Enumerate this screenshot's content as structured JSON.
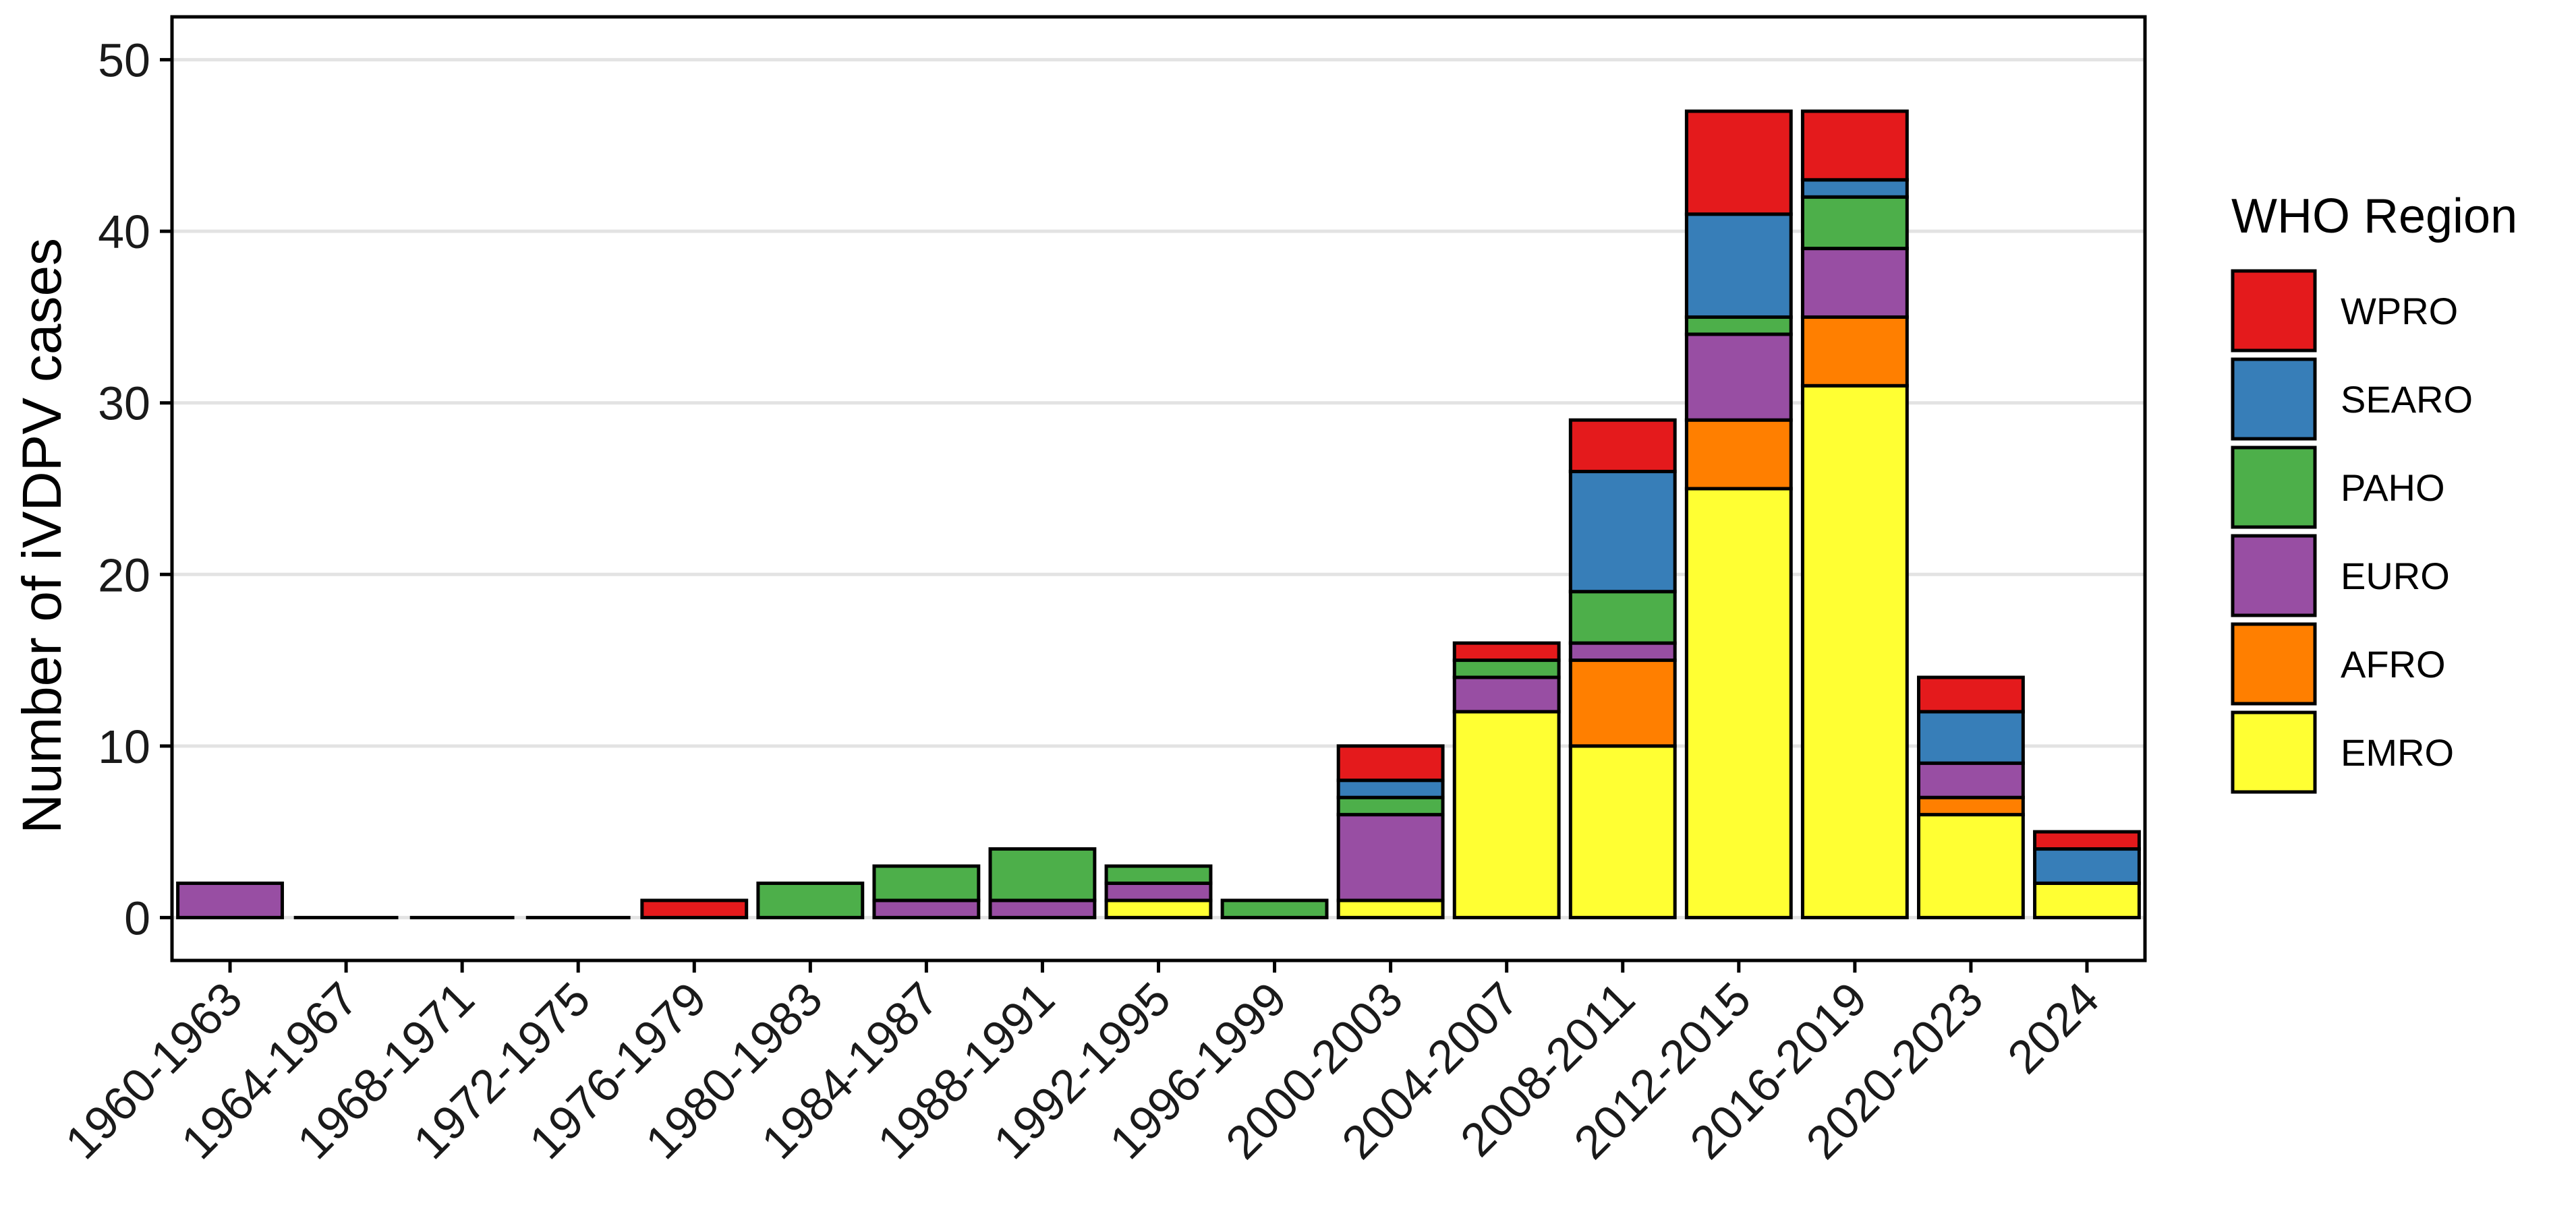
{
  "chart_data": {
    "type": "bar",
    "stacked": true,
    "title": "",
    "xlabel": "",
    "ylabel": "Number of iVDPV cases",
    "ylim": [
      -2.5,
      52.5
    ],
    "yticks": [
      0,
      10,
      20,
      30,
      40,
      50
    ],
    "grid": "horizontal",
    "legend_title": "WHO Region",
    "legend_position": "right",
    "categories": [
      "1960-1963",
      "1964-1967",
      "1968-1971",
      "1972-1975",
      "1976-1979",
      "1980-1983",
      "1984-1987",
      "1988-1991",
      "1992-1995",
      "1996-1999",
      "2000-2003",
      "2004-2007",
      "2008-2011",
      "2012-2015",
      "2016-2019",
      "2020-2023",
      "2024"
    ],
    "series": [
      {
        "name": "EMRO",
        "color": "#ffff33",
        "values": [
          0,
          0,
          0,
          0,
          0,
          0,
          0,
          0,
          1,
          0,
          1,
          12,
          10,
          25,
          31,
          6,
          2
        ]
      },
      {
        "name": "AFRO",
        "color": "#ff7f00",
        "values": [
          0,
          0,
          0,
          0,
          0,
          0,
          0,
          0,
          0,
          0,
          0,
          0,
          5,
          4,
          4,
          1,
          0
        ]
      },
      {
        "name": "EURO",
        "color": "#984ea3",
        "values": [
          2,
          0,
          0,
          0,
          0,
          0,
          1,
          1,
          1,
          0,
          5,
          2,
          1,
          5,
          4,
          2,
          0
        ]
      },
      {
        "name": "PAHO",
        "color": "#4daf4a",
        "values": [
          0,
          0,
          0,
          0,
          0,
          2,
          2,
          3,
          1,
          1,
          1,
          1,
          3,
          1,
          3,
          0,
          0
        ]
      },
      {
        "name": "SEARO",
        "color": "#377eb8",
        "values": [
          0,
          0,
          0,
          0,
          0,
          0,
          0,
          0,
          0,
          0,
          1,
          0,
          7,
          6,
          1,
          3,
          2
        ]
      },
      {
        "name": "WPRO",
        "color": "#e41a1c",
        "values": [
          0,
          0,
          0,
          0,
          1,
          0,
          0,
          0,
          0,
          0,
          2,
          1,
          3,
          6,
          4,
          2,
          1
        ]
      }
    ]
  }
}
